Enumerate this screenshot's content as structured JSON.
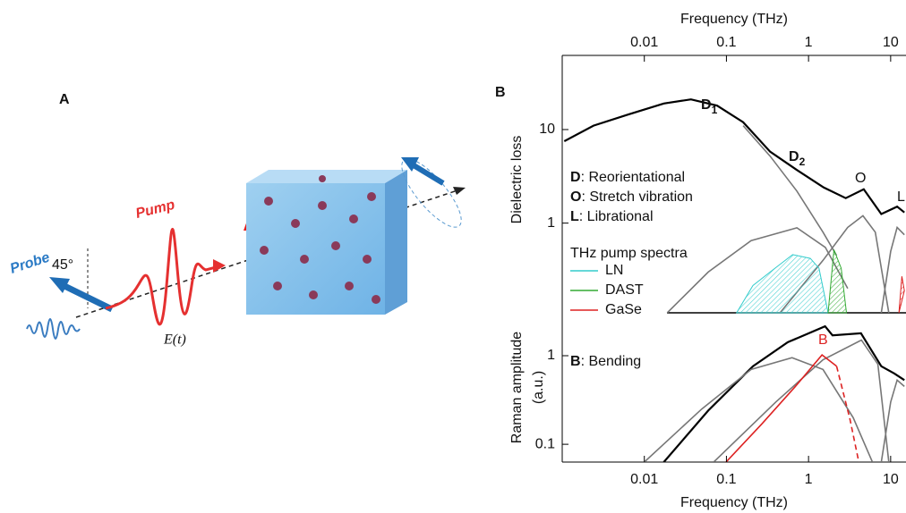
{
  "panel_a": {
    "label": "A",
    "probe": "Probe",
    "pump": "Pump",
    "angle": "45°",
    "field": "E(t)"
  },
  "panel_b_label": "B",
  "chart_data": [
    {
      "type": "line",
      "x_label": "Frequency (THz)",
      "y_label": "Dielectric loss",
      "log_x": true,
      "log_y": true,
      "xlim": [
        0.001,
        15
      ],
      "xticks": [
        0.01,
        0.1,
        1,
        10
      ],
      "ylim": [
        0.11,
        62
      ],
      "yticks": [
        1,
        10
      ],
      "series": [
        {
          "color": "#000000",
          "x": [
            0.00106,
            0.0024,
            0.0064,
            0.0173,
            0.037,
            0.077,
            0.16,
            0.34,
            0.72,
            1.53,
            2.84,
            4.7,
            7.7,
            12,
            14.7
          ],
          "values": [
            7.5,
            11,
            14.5,
            19,
            21,
            18,
            12,
            5.8,
            3.7,
            2.4,
            1.85,
            2.3,
            1.25,
            1.5,
            1.3
          ]
        },
        {
          "color": "#777777",
          "x": [
            0.16,
            0.34,
            0.72,
            1.5,
            2.2
          ],
          "values": [
            11,
            5.2,
            2.2,
            0.8,
            0.45
          ]
        },
        {
          "color": "#777777",
          "x": [
            0.019,
            0.06,
            0.2,
            0.72,
            1.6,
            3
          ],
          "values": [
            0.11,
            0.3,
            0.65,
            0.89,
            0.55,
            0.2
          ]
        },
        {
          "color": "#777777",
          "x": [
            0.45,
            1.5,
            3,
            4.6,
            6.5,
            9.5
          ],
          "values": [
            0.11,
            0.4,
            0.9,
            1.2,
            0.8,
            0.11
          ]
        },
        {
          "color": "#777777",
          "x": [
            7.7,
            10,
            12,
            14.7
          ],
          "values": [
            0.11,
            0.5,
            0.9,
            0.75
          ]
        }
      ],
      "pump_spectra": {
        "title": "THz pump spectra",
        "series": [
          {
            "name": "LN",
            "color": "#33cccc",
            "x": [
              0.133,
              0.21,
              0.34,
              0.64,
              1.05,
              1.34,
              1.73
            ],
            "values": [
              0.11,
              0.215,
              0.3,
              0.46,
              0.42,
              0.33,
              0.11
            ]
          },
          {
            "name": "DAST",
            "color": "#33aa33",
            "x": [
              1.73,
              2.04,
              2.5,
              2.9
            ],
            "values": [
              0.11,
              0.52,
              0.33,
              0.11
            ]
          },
          {
            "name": "GaSe",
            "color": "#dd2222",
            "x": [
              12.6,
              13.7,
              14.7
            ],
            "values": [
              0.11,
              0.27,
              0.19
            ]
          }
        ]
      },
      "annotations": [
        {
          "text": "D",
          "sub": "1"
        },
        {
          "text": "D",
          "sub": "2"
        },
        {
          "text": "O"
        },
        {
          "text": "L"
        }
      ],
      "legend": [
        {
          "key": "D",
          "text": ": Reorientational"
        },
        {
          "key": "O",
          "text": ": Stretch vibration"
        },
        {
          "key": "L",
          "text": ": Librational"
        }
      ]
    },
    {
      "type": "line",
      "x_label": "Frequency (THz)",
      "y_label": [
        "Raman amplitude",
        "(a.u.)"
      ],
      "log_x": true,
      "log_y": true,
      "xlim": [
        0.001,
        15
      ],
      "xticks": [
        0.01,
        0.1,
        1,
        10
      ],
      "ylim": [
        0.063,
        3.05
      ],
      "yticks": [
        0.1,
        1
      ],
      "series": [
        {
          "color": "#000000",
          "x": [
            0.0173,
            0.06,
            0.21,
            0.56,
            1.59,
            1.96,
            4.35,
            7.7,
            11.1,
            14.7
          ],
          "values": [
            0.063,
            0.24,
            0.76,
            1.42,
            2.15,
            1.7,
            1.79,
            0.76,
            0.63,
            0.53
          ]
        },
        {
          "color": "#777777",
          "x": [
            0.01,
            0.05,
            0.2,
            0.63,
            1.5,
            3.5,
            6
          ],
          "values": [
            0.063,
            0.25,
            0.7,
            0.95,
            0.7,
            0.2,
            0.063
          ]
        },
        {
          "color": "#777777",
          "x": [
            0.07,
            0.4,
            1.5,
            4.4,
            7,
            9.5
          ],
          "values": [
            0.063,
            0.3,
            0.9,
            1.5,
            0.8,
            0.063
          ]
        },
        {
          "color": "#777777",
          "x": [
            7.7,
            10,
            12,
            14.7
          ],
          "values": [
            0.063,
            0.3,
            0.53,
            0.45
          ]
        },
        {
          "color": "#dd2222",
          "x": [
            0.099,
            0.27,
            0.72,
            1.46,
            2.2
          ],
          "values": [
            0.063,
            0.17,
            0.47,
            1.02,
            0.76
          ]
        },
        {
          "color": "#dd2222",
          "dash": true,
          "x": [
            2.2,
            3.2,
            4.1
          ],
          "values": [
            0.76,
            0.19,
            0.063
          ]
        }
      ],
      "annotations": [
        {
          "text": "B"
        }
      ],
      "legend": [
        {
          "key": "B",
          "text": ": Bending"
        }
      ]
    }
  ]
}
